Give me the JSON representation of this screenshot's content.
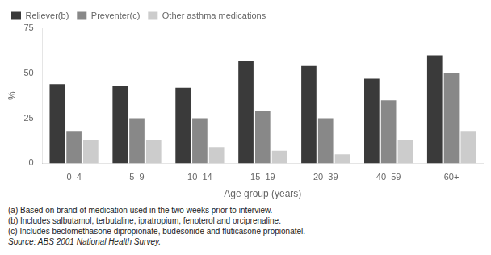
{
  "chart_data": {
    "type": "bar",
    "categories": [
      "0–4",
      "5–9",
      "10–14",
      "15–19",
      "20–39",
      "40–59",
      "60+"
    ],
    "series": [
      {
        "name": "Reliever(b)",
        "color": "#3a3a3a",
        "values": [
          44,
          43,
          42,
          57,
          54,
          47,
          60
        ]
      },
      {
        "name": "Preventer(c)",
        "color": "#888888",
        "values": [
          18,
          25,
          25,
          29,
          25,
          35,
          50
        ]
      },
      {
        "name": "Other asthma medications",
        "color": "#cccccc",
        "values": [
          13,
          13,
          9,
          7,
          5,
          13,
          18
        ]
      }
    ],
    "ylabel": "%",
    "xlabel": "Age group (years)",
    "ylim": [
      0,
      75
    ],
    "yticks": [
      0,
      25,
      50,
      75
    ],
    "grid": false,
    "legend": "upper left",
    "footnotes": [
      "(a) Based on brand of medication used in the two weeks prior to interview.",
      "(b) Includes salbutamol, terbutaline, ipratropium, fenoterol and orciprenaline.",
      "(c) Includes beclomethasone dipropionate, budesonide and fluticasone propionatel."
    ],
    "source": "Source: ABS 2001 National Health Survey."
  }
}
